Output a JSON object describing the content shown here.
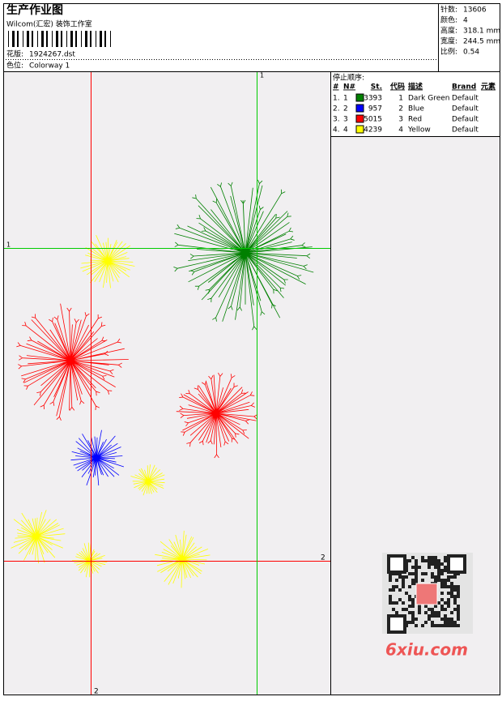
{
  "header": {
    "title": "生产作业图",
    "studio": "Wilcom(汇宏) 装饰工作室",
    "design_label": "花版:",
    "design_file": "1924267.dst",
    "colorway_label": "色位:",
    "colorway": "Colorway 1"
  },
  "info": [
    {
      "label": "针数:",
      "value": "13606"
    },
    {
      "label": "颜色:",
      "value": "4"
    },
    {
      "label": "高度:",
      "value": "318.1 mm"
    },
    {
      "label": "宽度:",
      "value": "244.5 mm"
    },
    {
      "label": "比例:",
      "value": "0.54"
    }
  ],
  "sequence": {
    "title": "停止顺序:",
    "columns": [
      "#",
      "N#",
      "St.",
      "代码",
      "描述",
      "Brand",
      "元素"
    ],
    "rows": [
      {
        "num": "1.",
        "n": "1",
        "color": "#008000",
        "stitches": "3393",
        "code": "1",
        "description": "Dark Green",
        "brand": "Default"
      },
      {
        "num": "2.",
        "n": "2",
        "color": "#0000ff",
        "stitches": "957",
        "code": "2",
        "description": "Blue",
        "brand": "Default"
      },
      {
        "num": "3.",
        "n": "3",
        "color": "#ff0000",
        "stitches": "5015",
        "code": "3",
        "description": "Red",
        "brand": "Default"
      },
      {
        "num": "4.",
        "n": "4",
        "color": "#ffff00",
        "stitches": "4239",
        "code": "4",
        "description": "Yellow",
        "brand": "Default"
      }
    ]
  },
  "markers": {
    "green_v": "1",
    "green_h": "1",
    "red_h": "2",
    "red_v": "2"
  },
  "watermark": "6xiu.com"
}
